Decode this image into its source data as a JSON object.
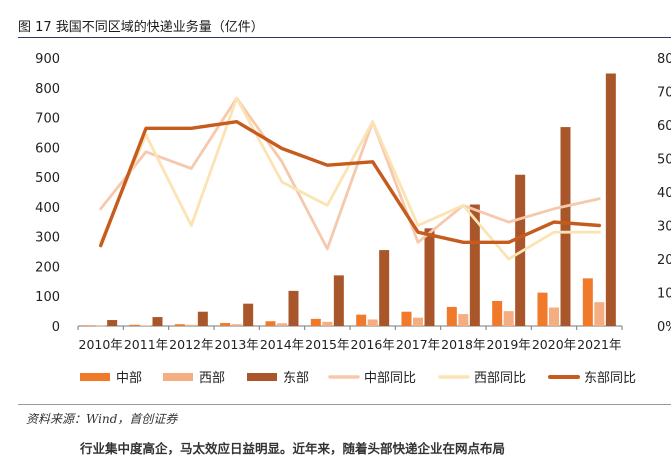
{
  "caption": {
    "title": "图 17 我国不同区域的快递业务量（亿件）",
    "source": "资料来源：Wind，首创证券",
    "body_fragment": "行业集中度高企，马太效应日益明显。近年来，随着头部快递企业在网点布局"
  },
  "chart_data": {
    "type": "bar+line",
    "categories": [
      "2010年",
      "2011年",
      "2012年",
      "2013年",
      "2014年",
      "2015年",
      "2016年",
      "2017年",
      "2018年",
      "2019年",
      "2020年",
      "2021年"
    ],
    "y_left": {
      "ticks": [
        "0",
        "100",
        "200",
        "300",
        "400",
        "500",
        "600",
        "700",
        "800",
        "900"
      ],
      "lim": [
        0,
        900
      ]
    },
    "y_right": {
      "ticks": [
        "0%",
        "10%",
        "20%",
        "30%",
        "40%",
        "50%",
        "60%",
        "70%",
        "80%"
      ],
      "lim": [
        0,
        80
      ]
    },
    "bar_series": [
      {
        "name": "中部",
        "color": "#f07a2a",
        "values": [
          2,
          4,
          6,
          10,
          16,
          24,
          38,
          48,
          64,
          84,
          112,
          160
        ]
      },
      {
        "name": "西部",
        "color": "#f5ad82",
        "values": [
          1,
          2,
          4,
          6,
          9,
          14,
          22,
          28,
          40,
          50,
          62,
          80
        ]
      },
      {
        "name": "东部",
        "color": "#a9572a",
        "values": [
          20,
          30,
          48,
          75,
          118,
          170,
          255,
          328,
          408,
          508,
          668,
          848
        ]
      }
    ],
    "line_series": [
      {
        "name": "中部同比",
        "color": "#f6c9ad",
        "width": 2.8,
        "values": [
          35,
          52,
          47,
          68,
          49,
          23,
          61,
          25,
          36,
          31,
          35,
          38
        ]
      },
      {
        "name": "西部同比",
        "color": "#fbe3b4",
        "width": 2.8,
        "values": [
          25,
          57,
          30,
          68,
          43,
          36,
          61,
          30,
          36,
          20,
          28,
          28
        ]
      },
      {
        "name": "东部同比",
        "color": "#c65b1e",
        "width": 3.4,
        "values": [
          24,
          59,
          59,
          61,
          53,
          48,
          49,
          28,
          25,
          25,
          31,
          30
        ]
      }
    ],
    "legend_position": "bottom"
  }
}
